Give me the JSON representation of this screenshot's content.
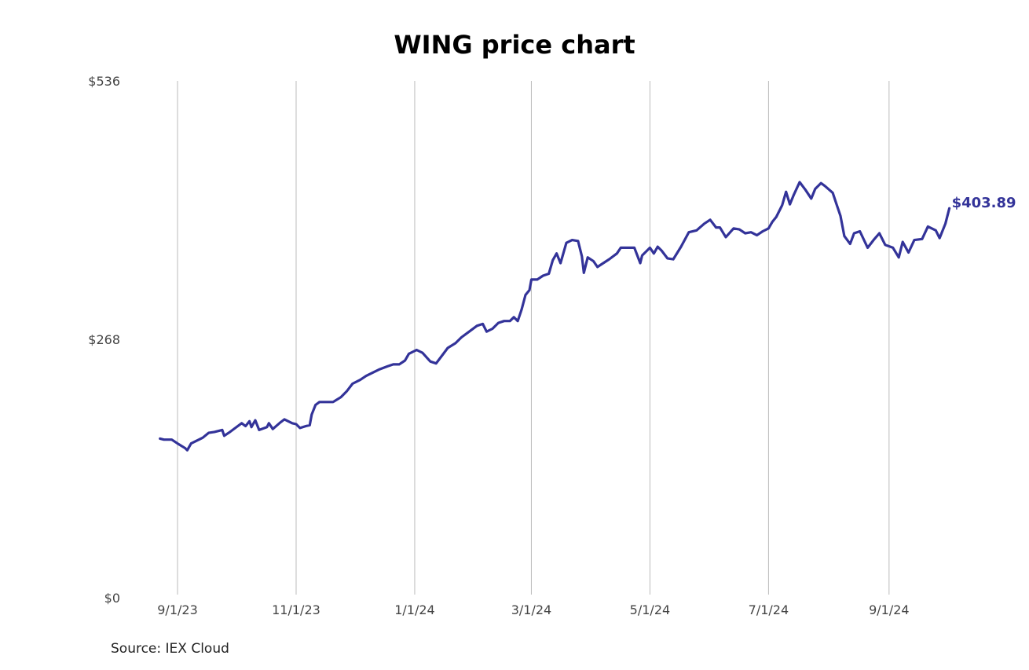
{
  "source": "Source: IEX Cloud",
  "colors": {
    "line": "#333399",
    "grid": "#bbbbbb",
    "text": "#444444"
  },
  "chart_data": {
    "type": "line",
    "title": "WING price chart",
    "xlabel": "",
    "ylabel": "",
    "grid": "vertical",
    "ylim": [
      0,
      536
    ],
    "y_ticks": [
      {
        "value": 0,
        "label": "$0"
      },
      {
        "value": 268,
        "label": "$268"
      },
      {
        "value": 536,
        "label": "$536"
      }
    ],
    "x_ticks": [
      {
        "date": "2023-09-01",
        "label": "9/1/23"
      },
      {
        "date": "2023-11-01",
        "label": "11/1/23"
      },
      {
        "date": "2024-01-01",
        "label": "1/1/24"
      },
      {
        "date": "2024-03-01",
        "label": "3/1/24"
      },
      {
        "date": "2024-05-01",
        "label": "5/1/24"
      },
      {
        "date": "2024-07-01",
        "label": "7/1/24"
      },
      {
        "date": "2024-09-01",
        "label": "9/1/24"
      }
    ],
    "last_value_label": "$403.89",
    "series": [
      {
        "values": [
          [
            "2023-08-23",
            165
          ],
          [
            "2023-08-25",
            164
          ],
          [
            "2023-08-29",
            164
          ],
          [
            "2023-09-01",
            160
          ],
          [
            "2023-09-05",
            155
          ],
          [
            "2023-09-06",
            153
          ],
          [
            "2023-09-08",
            160
          ],
          [
            "2023-09-12",
            164
          ],
          [
            "2023-09-14",
            166
          ],
          [
            "2023-09-17",
            171
          ],
          [
            "2023-09-20",
            172
          ],
          [
            "2023-09-24",
            174
          ],
          [
            "2023-09-25",
            168
          ],
          [
            "2023-09-28",
            172
          ],
          [
            "2023-10-02",
            178
          ],
          [
            "2023-10-04",
            181
          ],
          [
            "2023-10-06",
            178
          ],
          [
            "2023-10-08",
            183
          ],
          [
            "2023-10-09",
            177
          ],
          [
            "2023-10-11",
            184
          ],
          [
            "2023-10-13",
            174
          ],
          [
            "2023-10-17",
            177
          ],
          [
            "2023-10-18",
            181
          ],
          [
            "2023-10-20",
            175
          ],
          [
            "2023-10-24",
            182
          ],
          [
            "2023-10-26",
            185
          ],
          [
            "2023-10-30",
            181
          ],
          [
            "2023-11-01",
            180
          ],
          [
            "2023-11-03",
            176
          ],
          [
            "2023-11-06",
            178
          ],
          [
            "2023-11-08",
            179
          ],
          [
            "2023-11-09",
            190
          ],
          [
            "2023-11-11",
            200
          ],
          [
            "2023-11-13",
            203
          ],
          [
            "2023-11-16",
            203
          ],
          [
            "2023-11-20",
            203
          ],
          [
            "2023-11-24",
            208
          ],
          [
            "2023-11-27",
            214
          ],
          [
            "2023-11-30",
            222
          ],
          [
            "2023-12-04",
            226
          ],
          [
            "2023-12-07",
            230
          ],
          [
            "2023-12-11",
            234
          ],
          [
            "2023-12-14",
            237
          ],
          [
            "2023-12-18",
            240
          ],
          [
            "2023-12-21",
            242
          ],
          [
            "2023-12-24",
            242
          ],
          [
            "2023-12-27",
            246
          ],
          [
            "2023-12-29",
            253
          ],
          [
            "2024-01-02",
            257
          ],
          [
            "2024-01-05",
            254
          ],
          [
            "2024-01-09",
            245
          ],
          [
            "2024-01-12",
            243
          ],
          [
            "2024-01-15",
            251
          ],
          [
            "2024-01-18",
            259
          ],
          [
            "2024-01-22",
            264
          ],
          [
            "2024-01-25",
            270
          ],
          [
            "2024-01-29",
            276
          ],
          [
            "2024-02-02",
            282
          ],
          [
            "2024-02-05",
            284
          ],
          [
            "2024-02-07",
            276
          ],
          [
            "2024-02-10",
            279
          ],
          [
            "2024-02-13",
            285
          ],
          [
            "2024-02-16",
            287
          ],
          [
            "2024-02-19",
            287
          ],
          [
            "2024-02-21",
            291
          ],
          [
            "2024-02-23",
            287
          ],
          [
            "2024-02-25",
            299
          ],
          [
            "2024-02-27",
            314
          ],
          [
            "2024-02-29",
            319
          ],
          [
            "2024-03-01",
            330
          ],
          [
            "2024-03-04",
            330
          ],
          [
            "2024-03-07",
            334
          ],
          [
            "2024-03-10",
            336
          ],
          [
            "2024-03-12",
            350
          ],
          [
            "2024-03-14",
            357
          ],
          [
            "2024-03-16",
            347
          ],
          [
            "2024-03-19",
            368
          ],
          [
            "2024-03-22",
            371
          ],
          [
            "2024-03-25",
            370
          ],
          [
            "2024-03-27",
            354
          ],
          [
            "2024-03-28",
            337
          ],
          [
            "2024-03-30",
            353
          ],
          [
            "2024-04-02",
            349
          ],
          [
            "2024-04-04",
            343
          ],
          [
            "2024-04-07",
            347
          ],
          [
            "2024-04-10",
            351
          ],
          [
            "2024-04-14",
            357
          ],
          [
            "2024-04-16",
            363
          ],
          [
            "2024-04-20",
            363
          ],
          [
            "2024-04-23",
            363
          ],
          [
            "2024-04-26",
            347
          ],
          [
            "2024-04-27",
            355
          ],
          [
            "2024-05-01",
            363
          ],
          [
            "2024-05-03",
            357
          ],
          [
            "2024-05-05",
            364
          ],
          [
            "2024-05-07",
            360
          ],
          [
            "2024-05-10",
            352
          ],
          [
            "2024-05-13",
            351
          ],
          [
            "2024-05-17",
            364
          ],
          [
            "2024-05-21",
            379
          ],
          [
            "2024-05-25",
            381
          ],
          [
            "2024-05-29",
            388
          ],
          [
            "2024-06-01",
            392
          ],
          [
            "2024-06-04",
            384
          ],
          [
            "2024-06-06",
            384
          ],
          [
            "2024-06-09",
            374
          ],
          [
            "2024-06-13",
            383
          ],
          [
            "2024-06-16",
            382
          ],
          [
            "2024-06-19",
            378
          ],
          [
            "2024-06-22",
            379
          ],
          [
            "2024-06-25",
            376
          ],
          [
            "2024-06-28",
            380
          ],
          [
            "2024-07-01",
            383
          ],
          [
            "2024-07-03",
            390
          ],
          [
            "2024-07-05",
            395
          ],
          [
            "2024-07-08",
            407
          ],
          [
            "2024-07-10",
            421
          ],
          [
            "2024-07-12",
            408
          ],
          [
            "2024-07-14",
            418
          ],
          [
            "2024-07-17",
            431
          ],
          [
            "2024-07-20",
            423
          ],
          [
            "2024-07-23",
            414
          ],
          [
            "2024-07-25",
            424
          ],
          [
            "2024-07-28",
            430
          ],
          [
            "2024-07-30",
            427
          ],
          [
            "2024-08-03",
            420
          ],
          [
            "2024-08-05",
            408
          ],
          [
            "2024-08-07",
            396
          ],
          [
            "2024-08-09",
            375
          ],
          [
            "2024-08-12",
            367
          ],
          [
            "2024-08-14",
            378
          ],
          [
            "2024-08-17",
            380
          ],
          [
            "2024-08-21",
            363
          ],
          [
            "2024-08-24",
            371
          ],
          [
            "2024-08-27",
            378
          ],
          [
            "2024-08-30",
            366
          ],
          [
            "2024-09-03",
            363
          ],
          [
            "2024-09-06",
            353
          ],
          [
            "2024-09-08",
            369
          ],
          [
            "2024-09-11",
            358
          ],
          [
            "2024-09-14",
            371
          ],
          [
            "2024-09-18",
            372
          ],
          [
            "2024-09-21",
            385
          ],
          [
            "2024-09-25",
            381
          ],
          [
            "2024-09-27",
            373
          ],
          [
            "2024-09-30",
            388
          ],
          [
            "2024-10-02",
            403.89
          ]
        ]
      }
    ]
  }
}
